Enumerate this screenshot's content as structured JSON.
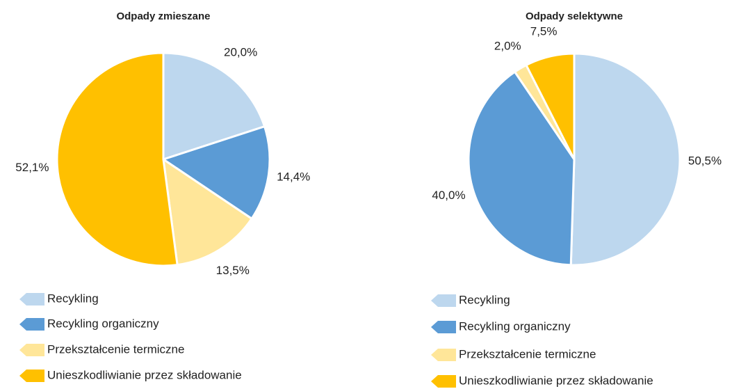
{
  "chart_data": [
    {
      "type": "pie",
      "title": "Odpady zmieszane",
      "categories": [
        "Recykling",
        "Recykling organiczny",
        "Przekształcenie termiczne",
        "Unieszkodliwianie przez składowanie"
      ],
      "values": [
        20.0,
        14.4,
        13.5,
        52.1
      ],
      "value_labels": [
        "20,0%",
        "14,4%",
        "13,5%",
        "52,1%"
      ],
      "colors": [
        "#bdd7ee",
        "#5b9bd5",
        "#ffe699",
        "#ffc000"
      ]
    },
    {
      "type": "pie",
      "title": "Odpady selektywne",
      "categories": [
        "Recykling",
        "Recykling organiczny",
        "Przekształcenie termiczne",
        "Unieszkodliwianie przez składowanie"
      ],
      "values": [
        50.5,
        40.0,
        2.0,
        7.5
      ],
      "value_labels": [
        "50,5%",
        "40,0%",
        "2,0%",
        "7,5%"
      ],
      "colors": [
        "#bdd7ee",
        "#5b9bd5",
        "#ffe699",
        "#ffc000"
      ]
    }
  ]
}
